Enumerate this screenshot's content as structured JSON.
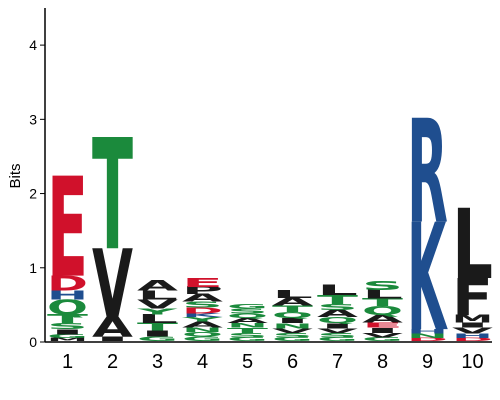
{
  "chart_data": {
    "type": "sequence-logo",
    "ylabel": "Bits",
    "ylim": [
      0,
      4.5
    ],
    "yticks": [
      "0",
      "1",
      "2",
      "3",
      "4"
    ],
    "positions": [
      "1",
      "2",
      "3",
      "4",
      "5",
      "6",
      "7",
      "8",
      "9",
      "10"
    ],
    "stacks": [
      [
        {
          "letter": "M",
          "bits": 0.04,
          "color": "#1a1a1a"
        },
        {
          "letter": "G",
          "bits": 0.05,
          "color": "#1b8a3c"
        },
        {
          "letter": "I",
          "bits": 0.07,
          "color": "#1a1a1a"
        },
        {
          "letter": "S",
          "bits": 0.08,
          "color": "#1b8a3c"
        },
        {
          "letter": "T",
          "bits": 0.12,
          "color": "#1b8a3c"
        },
        {
          "letter": "Q",
          "bits": 0.2,
          "color": "#1b8a3c"
        },
        {
          "letter": "H",
          "bits": 0.12,
          "color": "#1f4e8f"
        },
        {
          "letter": "D",
          "bits": 0.2,
          "color": "#d0112b"
        },
        {
          "letter": "E",
          "bits": 1.35,
          "color": "#d0112b"
        }
      ],
      [
        {
          "letter": "I",
          "bits": 0.06,
          "color": "#1a1a1a"
        },
        {
          "letter": "A",
          "bits": 0.27,
          "color": "#1a1a1a"
        },
        {
          "letter": "V",
          "bits": 0.92,
          "color": "#1a1a1a"
        },
        {
          "letter": "T",
          "bits": 1.5,
          "color": "#1b8a3c"
        }
      ],
      [
        {
          "letter": "G",
          "bits": 0.06,
          "color": "#1b8a3c"
        },
        {
          "letter": "I",
          "bits": 0.08,
          "color": "#1a1a1a"
        },
        {
          "letter": "T",
          "bits": 0.1,
          "color": "#1b8a3c"
        },
        {
          "letter": "L",
          "bits": 0.12,
          "color": "#1a1a1a"
        },
        {
          "letter": "Y",
          "bits": 0.08,
          "color": "#1b8a3c"
        },
        {
          "letter": "V",
          "bits": 0.12,
          "color": "#1a1a1a"
        },
        {
          "letter": "L",
          "bits": 0.12,
          "color": "#1a1a1a"
        },
        {
          "letter": "A",
          "bits": 0.14,
          "color": "#1a1a1a"
        }
      ],
      [
        {
          "letter": "G",
          "bits": 0.06,
          "color": "#1b8a3c"
        },
        {
          "letter": "Q",
          "bits": 0.06,
          "color": "#1b8a3c"
        },
        {
          "letter": "N",
          "bits": 0.06,
          "color": "#1b8a3c"
        },
        {
          "letter": "A",
          "bits": 0.08,
          "color": "#1a1a1a"
        },
        {
          "letter": "Y",
          "bits": 0.06,
          "color": "#1b8a3c"
        },
        {
          "letter": "K",
          "bits": 0.05,
          "color": "#1f4e8f"
        },
        {
          "letter": "D",
          "bits": 0.08,
          "color": "#d0112b"
        },
        {
          "letter": "S",
          "bits": 0.08,
          "color": "#1b8a3c"
        },
        {
          "letter": "A",
          "bits": 0.1,
          "color": "#1a1a1a"
        },
        {
          "letter": "P",
          "bits": 0.1,
          "color": "#1a1a1a"
        },
        {
          "letter": "E",
          "bits": 0.12,
          "color": "#d0112b"
        }
      ],
      [
        {
          "letter": "G",
          "bits": 0.05,
          "color": "#1b8a3c"
        },
        {
          "letter": "S",
          "bits": 0.06,
          "color": "#1b8a3c"
        },
        {
          "letter": "T",
          "bits": 0.07,
          "color": "#1b8a3c"
        },
        {
          "letter": "N",
          "bits": 0.06,
          "color": "#1b8a3c"
        },
        {
          "letter": "A",
          "bits": 0.07,
          "color": "#1a1a1a"
        },
        {
          "letter": "Q",
          "bits": 0.06,
          "color": "#1b8a3c"
        },
        {
          "letter": "S",
          "bits": 0.07,
          "color": "#1b8a3c"
        },
        {
          "letter": "G",
          "bits": 0.06,
          "color": "#1b8a3c"
        }
      ],
      [
        {
          "letter": "G",
          "bits": 0.05,
          "color": "#1b8a3c"
        },
        {
          "letter": "S",
          "bits": 0.06,
          "color": "#1b8a3c"
        },
        {
          "letter": "V",
          "bits": 0.06,
          "color": "#1a1a1a"
        },
        {
          "letter": "N",
          "bits": 0.07,
          "color": "#1b8a3c"
        },
        {
          "letter": "I",
          "bits": 0.07,
          "color": "#1a1a1a"
        },
        {
          "letter": "Q",
          "bits": 0.08,
          "color": "#1b8a3c"
        },
        {
          "letter": "T",
          "bits": 0.09,
          "color": "#1b8a3c"
        },
        {
          "letter": "A",
          "bits": 0.1,
          "color": "#1a1a1a"
        },
        {
          "letter": "L",
          "bits": 0.1,
          "color": "#1a1a1a"
        }
      ],
      [
        {
          "letter": "G",
          "bits": 0.05,
          "color": "#1b8a3c"
        },
        {
          "letter": "S",
          "bits": 0.06,
          "color": "#1b8a3c"
        },
        {
          "letter": "V",
          "bits": 0.06,
          "color": "#1a1a1a"
        },
        {
          "letter": "I",
          "bits": 0.07,
          "color": "#1a1a1a"
        },
        {
          "letter": "Q",
          "bits": 0.08,
          "color": "#1b8a3c"
        },
        {
          "letter": "A",
          "bits": 0.1,
          "color": "#1a1a1a"
        },
        {
          "letter": "S",
          "bits": 0.08,
          "color": "#1b8a3c"
        },
        {
          "letter": "T",
          "bits": 0.12,
          "color": "#1b8a3c"
        },
        {
          "letter": "L",
          "bits": 0.14,
          "color": "#1a1a1a"
        }
      ],
      [
        {
          "letter": "G",
          "bits": 0.05,
          "color": "#1b8a3c"
        },
        {
          "letter": "V",
          "bits": 0.06,
          "color": "#1a1a1a"
        },
        {
          "letter": "I",
          "bits": 0.07,
          "color": "#1a1a1a"
        },
        {
          "letter": "E",
          "bits": 0.07,
          "color": "#d0112b"
        },
        {
          "letter": "A",
          "bits": 0.1,
          "color": "#1a1a1a"
        },
        {
          "letter": "Q",
          "bits": 0.12,
          "color": "#1b8a3c"
        },
        {
          "letter": "T",
          "bits": 0.1,
          "color": "#1b8a3c"
        },
        {
          "letter": "L",
          "bits": 0.12,
          "color": "#1a1a1a"
        },
        {
          "letter": "S",
          "bits": 0.12,
          "color": "#1b8a3c"
        }
      ],
      [
        {
          "letter": "D",
          "bits": 0.04,
          "color": "#d0112b"
        },
        {
          "letter": "N",
          "bits": 0.06,
          "color": "#1b8a3c"
        },
        {
          "letter": "H",
          "bits": 0.06,
          "color": "#1f4e8f"
        },
        {
          "letter": "K",
          "bits": 1.45,
          "color": "#1f4e8f"
        },
        {
          "letter": "R",
          "bits": 1.4,
          "color": "#1f4e8f"
        }
      ],
      [
        {
          "letter": "D",
          "bits": 0.04,
          "color": "#d0112b"
        },
        {
          "letter": "H",
          "bits": 0.06,
          "color": "#1f4e8f"
        },
        {
          "letter": "V",
          "bits": 0.08,
          "color": "#1a1a1a"
        },
        {
          "letter": "I",
          "bits": 0.07,
          "color": "#1a1a1a"
        },
        {
          "letter": "M",
          "bits": 0.1,
          "color": "#1a1a1a"
        },
        {
          "letter": "F",
          "bits": 0.5,
          "color": "#1a1a1a"
        },
        {
          "letter": "L",
          "bits": 0.95,
          "color": "#1a1a1a"
        }
      ]
    ]
  }
}
